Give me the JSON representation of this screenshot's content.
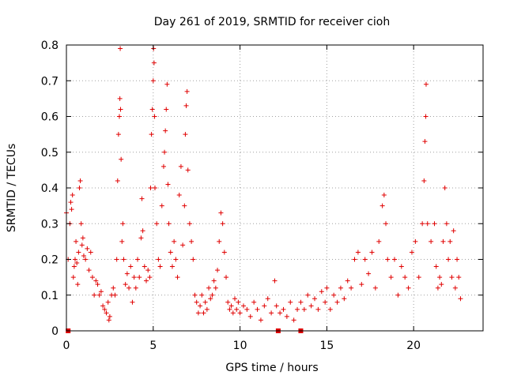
{
  "chart_data": {
    "type": "scatter",
    "title": "Day 261 of 2019, SRMTID for receiver cioh",
    "xlabel": "GPS time / hours",
    "ylabel": "SRMTID / TECUs",
    "xlim": [
      0,
      24
    ],
    "ylim": [
      0,
      0.8
    ],
    "x_ticks": [
      0,
      5,
      10,
      15,
      20
    ],
    "x_tick_labels": [
      "0",
      "5",
      "10",
      "15",
      "20"
    ],
    "y_ticks": [
      0,
      0.1,
      0.2,
      0.3,
      0.4,
      0.5,
      0.6,
      0.7,
      0.8
    ],
    "y_tick_labels": [
      "0",
      "0.1",
      "0.2",
      "0.3",
      "0.4",
      "0.5",
      "0.6",
      "0.7",
      "0.8"
    ],
    "grid": true,
    "marker": "+",
    "color": "#e00000",
    "series": [
      {
        "name": "SRMTID",
        "points": [
          [
            0.0,
            0.33
          ],
          [
            0.1,
            0.2
          ],
          [
            0.2,
            0.3
          ],
          [
            0.25,
            0.36
          ],
          [
            0.3,
            0.34
          ],
          [
            0.35,
            0.38
          ],
          [
            0.4,
            0.15
          ],
          [
            0.45,
            0.18
          ],
          [
            0.5,
            0.2
          ],
          [
            0.55,
            0.25
          ],
          [
            0.6,
            0.19
          ],
          [
            0.65,
            0.13
          ],
          [
            0.7,
            0.22
          ],
          [
            0.75,
            0.4
          ],
          [
            0.8,
            0.42
          ],
          [
            0.85,
            0.3
          ],
          [
            0.9,
            0.24
          ],
          [
            0.95,
            0.26
          ],
          [
            1.0,
            0.21
          ],
          [
            1.1,
            0.2
          ],
          [
            1.2,
            0.23
          ],
          [
            1.3,
            0.17
          ],
          [
            1.4,
            0.22
          ],
          [
            1.5,
            0.15
          ],
          [
            1.6,
            0.1
          ],
          [
            1.7,
            0.14
          ],
          [
            1.8,
            0.13
          ],
          [
            1.9,
            0.1
          ],
          [
            2.0,
            0.11
          ],
          [
            2.1,
            0.07
          ],
          [
            2.2,
            0.06
          ],
          [
            2.3,
            0.05
          ],
          [
            2.4,
            0.08
          ],
          [
            2.45,
            0.03
          ],
          [
            2.5,
            0.04
          ],
          [
            2.6,
            0.1
          ],
          [
            2.7,
            0.12
          ],
          [
            2.8,
            0.1
          ],
          [
            2.9,
            0.2
          ],
          [
            2.95,
            0.42
          ],
          [
            3.0,
            0.55
          ],
          [
            3.05,
            0.6
          ],
          [
            3.08,
            0.65
          ],
          [
            3.1,
            0.79
          ],
          [
            3.12,
            0.62
          ],
          [
            3.15,
            0.48
          ],
          [
            3.2,
            0.25
          ],
          [
            3.25,
            0.3
          ],
          [
            3.3,
            0.2
          ],
          [
            3.4,
            0.13
          ],
          [
            3.5,
            0.16
          ],
          [
            3.6,
            0.12
          ],
          [
            3.7,
            0.18
          ],
          [
            3.8,
            0.08
          ],
          [
            3.9,
            0.15
          ],
          [
            4.0,
            0.12
          ],
          [
            4.1,
            0.2
          ],
          [
            4.2,
            0.15
          ],
          [
            4.3,
            0.26
          ],
          [
            4.35,
            0.37
          ],
          [
            4.4,
            0.28
          ],
          [
            4.5,
            0.18
          ],
          [
            4.6,
            0.14
          ],
          [
            4.7,
            0.17
          ],
          [
            4.8,
            0.15
          ],
          [
            4.85,
            0.4
          ],
          [
            4.9,
            0.55
          ],
          [
            4.95,
            0.62
          ],
          [
            5.0,
            0.7
          ],
          [
            5.02,
            0.79
          ],
          [
            5.05,
            0.75
          ],
          [
            5.08,
            0.6
          ],
          [
            5.1,
            0.4
          ],
          [
            5.2,
            0.3
          ],
          [
            5.3,
            0.2
          ],
          [
            5.4,
            0.18
          ],
          [
            5.5,
            0.35
          ],
          [
            5.6,
            0.46
          ],
          [
            5.65,
            0.5
          ],
          [
            5.7,
            0.56
          ],
          [
            5.75,
            0.62
          ],
          [
            5.8,
            0.69
          ],
          [
            5.85,
            0.41
          ],
          [
            5.9,
            0.3
          ],
          [
            6.0,
            0.22
          ],
          [
            6.1,
            0.18
          ],
          [
            6.2,
            0.25
          ],
          [
            6.3,
            0.2
          ],
          [
            6.4,
            0.15
          ],
          [
            6.5,
            0.38
          ],
          [
            6.6,
            0.46
          ],
          [
            6.7,
            0.24
          ],
          [
            6.8,
            0.35
          ],
          [
            6.85,
            0.55
          ],
          [
            6.9,
            0.63
          ],
          [
            6.95,
            0.67
          ],
          [
            7.0,
            0.45
          ],
          [
            7.1,
            0.3
          ],
          [
            7.2,
            0.25
          ],
          [
            7.3,
            0.2
          ],
          [
            7.4,
            0.1
          ],
          [
            7.5,
            0.08
          ],
          [
            7.6,
            0.05
          ],
          [
            7.7,
            0.07
          ],
          [
            7.8,
            0.1
          ],
          [
            7.9,
            0.05
          ],
          [
            8.0,
            0.08
          ],
          [
            8.1,
            0.06
          ],
          [
            8.2,
            0.12
          ],
          [
            8.3,
            0.09
          ],
          [
            8.4,
            0.1
          ],
          [
            8.5,
            0.14
          ],
          [
            8.6,
            0.12
          ],
          [
            8.7,
            0.17
          ],
          [
            8.8,
            0.25
          ],
          [
            8.9,
            0.33
          ],
          [
            9.0,
            0.3
          ],
          [
            9.1,
            0.22
          ],
          [
            9.2,
            0.15
          ],
          [
            9.3,
            0.08
          ],
          [
            9.4,
            0.06
          ],
          [
            9.5,
            0.07
          ],
          [
            9.6,
            0.05
          ],
          [
            9.7,
            0.09
          ],
          [
            9.8,
            0.06
          ],
          [
            9.9,
            0.08
          ],
          [
            10.0,
            0.05
          ],
          [
            10.2,
            0.07
          ],
          [
            10.4,
            0.06
          ],
          [
            10.6,
            0.04
          ],
          [
            10.8,
            0.08
          ],
          [
            11.0,
            0.06
          ],
          [
            11.2,
            0.03
          ],
          [
            11.4,
            0.07
          ],
          [
            11.6,
            0.09
          ],
          [
            11.8,
            0.05
          ],
          [
            12.0,
            0.14
          ],
          [
            12.1,
            0.07
          ],
          [
            12.3,
            0.05
          ],
          [
            12.5,
            0.06
          ],
          [
            12.7,
            0.04
          ],
          [
            12.9,
            0.08
          ],
          [
            13.1,
            0.03
          ],
          [
            13.3,
            0.06
          ],
          [
            13.5,
            0.08
          ],
          [
            13.7,
            0.06
          ],
          [
            13.9,
            0.1
          ],
          [
            14.1,
            0.07
          ],
          [
            14.3,
            0.09
          ],
          [
            14.5,
            0.06
          ],
          [
            14.7,
            0.11
          ],
          [
            14.9,
            0.08
          ],
          [
            15.0,
            0.12
          ],
          [
            15.2,
            0.06
          ],
          [
            15.4,
            0.1
          ],
          [
            15.6,
            0.08
          ],
          [
            15.8,
            0.12
          ],
          [
            16.0,
            0.09
          ],
          [
            16.2,
            0.14
          ],
          [
            16.4,
            0.12
          ],
          [
            16.6,
            0.2
          ],
          [
            16.8,
            0.22
          ],
          [
            17.0,
            0.13
          ],
          [
            17.2,
            0.2
          ],
          [
            17.4,
            0.16
          ],
          [
            17.6,
            0.22
          ],
          [
            17.8,
            0.12
          ],
          [
            18.0,
            0.25
          ],
          [
            18.2,
            0.35
          ],
          [
            18.3,
            0.38
          ],
          [
            18.4,
            0.3
          ],
          [
            18.5,
            0.2
          ],
          [
            18.7,
            0.15
          ],
          [
            18.9,
            0.2
          ],
          [
            19.1,
            0.1
          ],
          [
            19.3,
            0.18
          ],
          [
            19.5,
            0.15
          ],
          [
            19.7,
            0.12
          ],
          [
            19.9,
            0.22
          ],
          [
            20.1,
            0.25
          ],
          [
            20.3,
            0.15
          ],
          [
            20.5,
            0.3
          ],
          [
            20.6,
            0.42
          ],
          [
            20.65,
            0.53
          ],
          [
            20.7,
            0.6
          ],
          [
            20.72,
            0.69
          ],
          [
            20.8,
            0.3
          ],
          [
            21.0,
            0.25
          ],
          [
            21.2,
            0.3
          ],
          [
            21.3,
            0.18
          ],
          [
            21.4,
            0.12
          ],
          [
            21.5,
            0.15
          ],
          [
            21.6,
            0.13
          ],
          [
            21.7,
            0.25
          ],
          [
            21.8,
            0.4
          ],
          [
            21.9,
            0.3
          ],
          [
            22.0,
            0.2
          ],
          [
            22.1,
            0.25
          ],
          [
            22.2,
            0.15
          ],
          [
            22.3,
            0.28
          ],
          [
            22.4,
            0.12
          ],
          [
            22.5,
            0.2
          ],
          [
            22.6,
            0.15
          ],
          [
            22.7,
            0.09
          ]
        ]
      }
    ],
    "zero_markers": [
      [
        0.1,
        0
      ],
      [
        12.2,
        0
      ],
      [
        13.5,
        0
      ]
    ]
  }
}
